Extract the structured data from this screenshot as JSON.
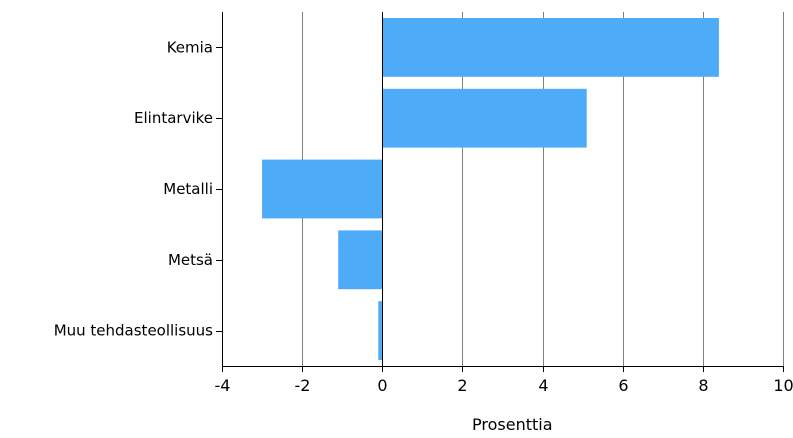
{
  "chart_data": {
    "type": "bar",
    "orientation": "horizontal",
    "categories": [
      "Kemia",
      "Elintarvike",
      "Metalli",
      "Metsä",
      "Muu tehdasteollisuus"
    ],
    "values": [
      8.4,
      5.1,
      -3.0,
      -1.1,
      -0.1
    ],
    "xlabel": "Prosenttia",
    "ylabel": "",
    "xlim": [
      -4,
      10
    ],
    "xticks": [
      "-4",
      "-2",
      "0",
      "2",
      "4",
      "6",
      "8",
      "10"
    ],
    "grid": "vertical",
    "legend": "none",
    "bar_color": "#4dabf7",
    "grid_color": "#808080",
    "axis_color": "#000000"
  }
}
